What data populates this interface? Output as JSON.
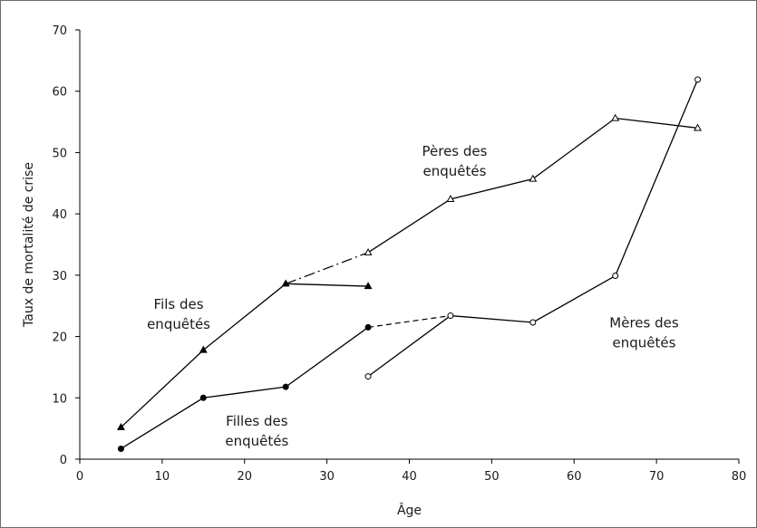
{
  "chart_data": {
    "type": "line",
    "xlabel": "Âge",
    "ylabel": "Taux de mortalité de crise",
    "xlim": [
      0,
      80
    ],
    "ylim": [
      0,
      70
    ],
    "xticks": [
      0,
      10,
      20,
      30,
      40,
      50,
      60,
      70,
      80
    ],
    "yticks": [
      0,
      10,
      20,
      30,
      40,
      50,
      60,
      70
    ],
    "grid": false,
    "series": [
      {
        "name": "Fils des enquêtés",
        "marker": "filled-triangle",
        "color": "#000000",
        "points": [
          [
            5,
            5.2
          ],
          [
            15,
            17.8
          ],
          [
            25,
            28.6
          ],
          [
            35,
            28.2
          ]
        ]
      },
      {
        "name": "Filles des enquêtés",
        "marker": "filled-circle",
        "color": "#000000",
        "points": [
          [
            5,
            1.7
          ],
          [
            15,
            10.0
          ],
          [
            25,
            11.8
          ],
          [
            35,
            21.5
          ]
        ]
      },
      {
        "name": "Pères des enquêtés",
        "marker": "open-triangle",
        "color": "#000000",
        "points": [
          [
            35,
            33.7
          ],
          [
            45,
            42.4
          ],
          [
            55,
            45.7
          ],
          [
            65,
            55.6
          ],
          [
            75,
            54.0
          ]
        ]
      },
      {
        "name": "Mères des enquêtés",
        "marker": "open-circle",
        "color": "#000000",
        "points": [
          [
            35,
            13.5
          ],
          [
            45,
            23.4
          ],
          [
            55,
            22.3
          ],
          [
            65,
            29.9
          ],
          [
            75,
            61.9
          ]
        ]
      }
    ],
    "connectors": [
      {
        "style": "dash-dot",
        "from": [
          25,
          28.6
        ],
        "to": [
          35,
          33.7
        ]
      },
      {
        "style": "dashed",
        "from": [
          35,
          21.5
        ],
        "to": [
          45,
          23.4
        ]
      }
    ],
    "annotations": [
      {
        "lines": [
          "Pères des",
          "enquêtés"
        ],
        "x": 45.5,
        "y": 49.5
      },
      {
        "lines": [
          "Fils des",
          "enquêtés"
        ],
        "x": 12,
        "y": 24.5
      },
      {
        "lines": [
          "Mères des",
          "enquêtés"
        ],
        "x": 68.5,
        "y": 21.5
      },
      {
        "lines": [
          "Filles des",
          "enquêtés"
        ],
        "x": 21.5,
        "y": 5.5
      }
    ]
  }
}
